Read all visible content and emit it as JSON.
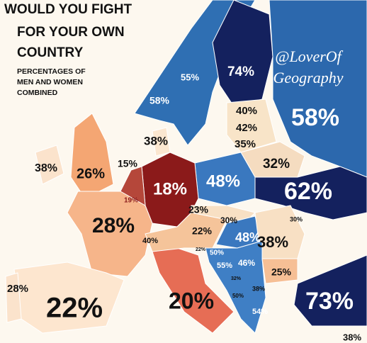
{
  "title": [
    "WOULD YOU FIGHT",
    "FOR YOUR OWN",
    "COUNTRY"
  ],
  "subtitle": [
    "PERCENTAGES OF",
    "MEN AND WOMEN",
    "COMBINED"
  ],
  "credit": [
    "@LoverOf",
    "Geography"
  ],
  "regions": [
    {
      "name": "Norway",
      "label": "55%"
    },
    {
      "name": "Sweden",
      "label": "58%"
    },
    {
      "name": "Finland",
      "label": "74%"
    },
    {
      "name": "Russia",
      "label": "58%"
    },
    {
      "name": "Estonia",
      "label": "40%"
    },
    {
      "name": "Latvia",
      "label": "42%"
    },
    {
      "name": "Lithuania",
      "label": "35%"
    },
    {
      "name": "Belarus",
      "label": "32%"
    },
    {
      "name": "Denmark",
      "label": "38%"
    },
    {
      "name": "United Kingdom",
      "label": "26%"
    },
    {
      "name": "Ireland",
      "label": "38%"
    },
    {
      "name": "Netherlands",
      "label": "15%"
    },
    {
      "name": "Belgium",
      "label": "19%"
    },
    {
      "name": "Germany",
      "label": "18%"
    },
    {
      "name": "Poland",
      "label": "48%"
    },
    {
      "name": "Ukraine",
      "label": "62%"
    },
    {
      "name": "France",
      "label": "28%"
    },
    {
      "name": "Switzerland",
      "label": "40%"
    },
    {
      "name": "Czechia",
      "label": "23%"
    },
    {
      "name": "Austria",
      "label": "22%"
    },
    {
      "name": "Slovakia",
      "label": "30%"
    },
    {
      "name": "Hungary",
      "label": "48%"
    },
    {
      "name": "Moldova",
      "label": "30%"
    },
    {
      "name": "Romania",
      "label": "38%"
    },
    {
      "name": "Slovenia",
      "label": "22%"
    },
    {
      "name": "Croatia",
      "label": "50%"
    },
    {
      "name": "Bosnia",
      "label": "55%"
    },
    {
      "name": "Serbia",
      "label": "46%"
    },
    {
      "name": "Bulgaria",
      "label": "25%"
    },
    {
      "name": "Montenegro",
      "label": "32%"
    },
    {
      "name": "North Macedonia",
      "label": "38%"
    },
    {
      "name": "Albania",
      "label": "50%"
    },
    {
      "name": "Greece",
      "label": "54%"
    },
    {
      "name": "Turkey",
      "label": "73%"
    },
    {
      "name": "Portugal",
      "label": "28%"
    },
    {
      "name": "Spain",
      "label": "22%"
    },
    {
      "name": "Italy",
      "label": "20%"
    },
    {
      "name": "Cyprus",
      "label": "38%"
    }
  ]
}
